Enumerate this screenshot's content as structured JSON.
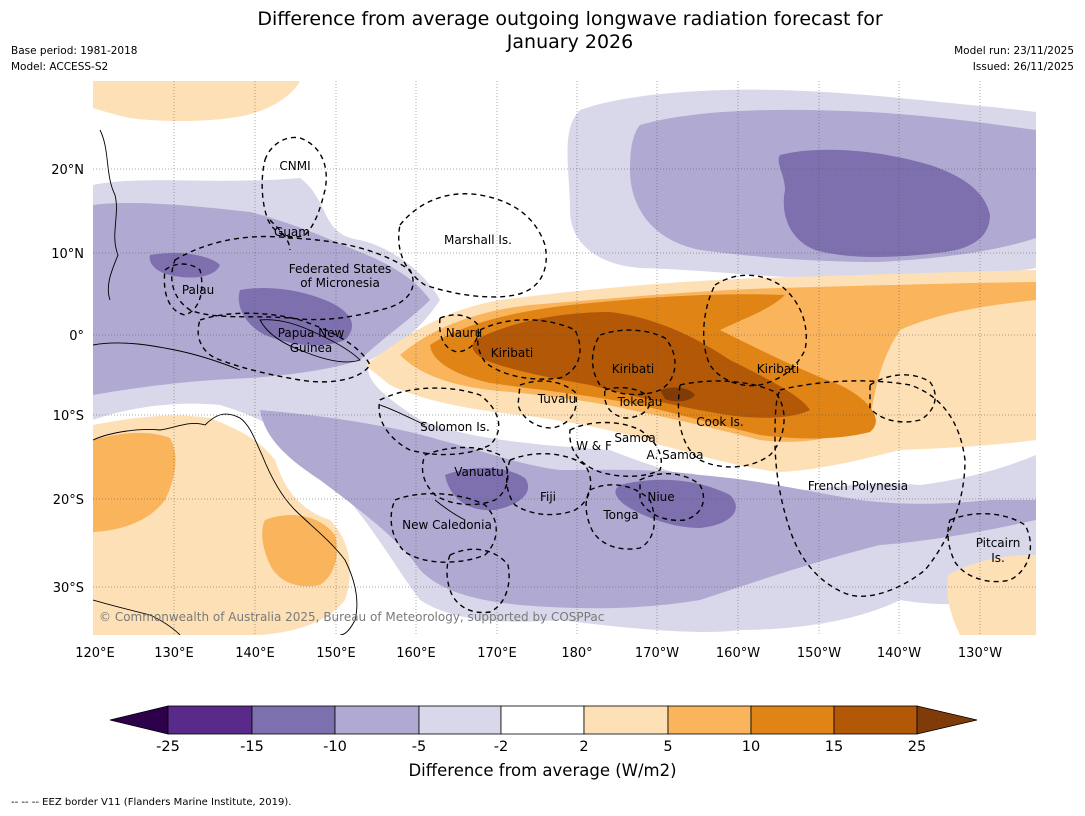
{
  "title": {
    "line1": "Difference from average outgoing longwave radiation forecast for",
    "line2": "January 2026"
  },
  "meta": {
    "base_period": "Base period: 1981-2018",
    "model": "Model: ACCESS-S2",
    "model_run": "Model run: 23/11/2025",
    "issued": "Issued: 26/11/2025"
  },
  "map": {
    "lat_labels": [
      "20°N",
      "10°N",
      "0°",
      "10°S",
      "20°S",
      "30°S"
    ],
    "lon_labels": [
      "120°E",
      "130°E",
      "140°E",
      "150°E",
      "160°E",
      "170°E",
      "180°",
      "170°W",
      "160°W",
      "150°W",
      "140°W",
      "130°W"
    ],
    "regions": {
      "cnmi": "CNMI",
      "guam": "Guam",
      "marshall": "Marshall Is.",
      "fsm_1": "Federated States",
      "fsm_2": "of Micronesia",
      "palau": "Palau",
      "png_1": "Papua New",
      "png_2": "Guinea",
      "nauru": "Nauru",
      "kiribati_w": "Kiribati",
      "kiribati_c": "Kiribati",
      "kiribati_e": "Kiribati",
      "tuvalu": "Tuvalu",
      "tokelau": "Tokelau",
      "cook": "Cook Is.",
      "solomon": "Solomon Is.",
      "wf": "W & F",
      "samoa": "Samoa",
      "asamoa": "A. Samoa",
      "vanuatu": "Vanuatu",
      "fiji": "Fiji",
      "niue": "Niue",
      "tonga": "Tonga",
      "newcal": "New Caledonia",
      "fp": "French Polynesia",
      "pitcairn_1": "Pitcairn",
      "pitcairn_2": "Is."
    },
    "copyright": "© Commonwealth of Australia 2025, Bureau of Meteorology, supported by COSPPac",
    "colors": {
      "n25": "#2d004b",
      "n15_25": "#5a2a8a",
      "n10_15": "#7e70ae",
      "n5_10": "#b0aad2",
      "n2_5": "#d8d8ea",
      "neutral": "#ffffff",
      "p2_5": "#fde0b6",
      "p5_10": "#f9b45c",
      "p10_15": "#e08416",
      "p15_25": "#b35806",
      "p25": "#7f3b08"
    }
  },
  "colorbar": {
    "ticks": [
      "-25",
      "-15",
      "-10",
      "-5",
      "-2",
      "2",
      "5",
      "10",
      "15",
      "25"
    ],
    "label": "Difference from average (W/m2)"
  },
  "footer": "--  --  -- EEZ border V11 (Flanders Marine Institute, 2019)."
}
